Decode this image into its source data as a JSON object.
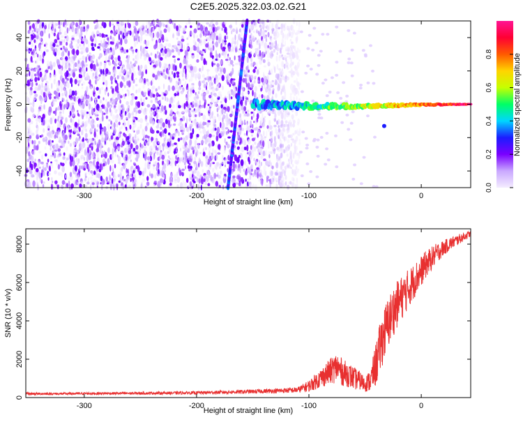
{
  "figure": {
    "title": "C2E5.2025.322.03.02.G21"
  },
  "chart_data": [
    {
      "type": "heatmap",
      "xlabel": "Height of straight line (km)",
      "ylabel": "Frequency (Hz)",
      "xlim": [
        -352,
        44
      ],
      "ylim": [
        -50,
        50
      ],
      "xticks": [
        -300,
        -200,
        -100,
        0
      ],
      "yticks": [
        -40,
        -20,
        0,
        20,
        40
      ],
      "colorbar": {
        "label": "Normalized spectral amplitude",
        "range": [
          0,
          1
        ],
        "ticks": [
          0.0,
          0.2,
          0.4,
          0.6,
          0.8
        ],
        "colors": [
          "#f4ecff",
          "#c9a8ff",
          "#7a00ff",
          "#1c1cff",
          "#00d6ff",
          "#00ff66",
          "#c6ff00",
          "#ffd400",
          "#ff5a00",
          "#ff0033",
          "#ff1493"
        ]
      },
      "features": {
        "noise_region_x": [
          -352,
          -108
        ],
        "noise_amplitude": 0.12,
        "diagonal_line": {
          "x_start": -172,
          "y_start": -50,
          "x_end": -155,
          "y_end": 50,
          "amplitude": 0.3
        },
        "carrier_trace": {
          "x_start": -150,
          "x_end": 44,
          "frequency": 0,
          "amplitude_start": 0.35,
          "amplitude_end": 0.95
        }
      }
    },
    {
      "type": "line",
      "xlabel": "Height of straight line (km)",
      "ylabel": "SNR (10 * v/v)",
      "xlim": [
        -352,
        44
      ],
      "ylim": [
        0,
        8800
      ],
      "xticks": [
        -300,
        -200,
        -100,
        0
      ],
      "yticks": [
        0,
        2000,
        4000,
        6000,
        8000
      ],
      "series": [
        {
          "color": "#e83030",
          "x": [
            -352,
            -320,
            -280,
            -240,
            -200,
            -160,
            -130,
            -110,
            -100,
            -90,
            -80,
            -75,
            -70,
            -65,
            -60,
            -55,
            -50,
            -45,
            -40,
            -35,
            -30,
            -25,
            -20,
            -15,
            -10,
            -5,
            0,
            5,
            10,
            15,
            20,
            25,
            30,
            35,
            40,
            44
          ],
          "y": [
            200,
            200,
            220,
            230,
            250,
            300,
            350,
            400,
            600,
            1000,
            1400,
            1600,
            1300,
            1200,
            1000,
            900,
            700,
            900,
            1800,
            3000,
            3800,
            4500,
            5000,
            5400,
            5800,
            6200,
            6600,
            7000,
            7300,
            7600,
            7800,
            8000,
            8150,
            8300,
            8450,
            8550
          ],
          "noise": [
            60,
            60,
            70,
            70,
            80,
            100,
            120,
            150,
            300,
            500,
            700,
            800,
            700,
            650,
            600,
            500,
            400,
            600,
            1200,
            1400,
            1400,
            1300,
            1200,
            1100,
            1000,
            900,
            800,
            700,
            600,
            500,
            400,
            350,
            300,
            250,
            200,
            150
          ]
        }
      ]
    }
  ]
}
